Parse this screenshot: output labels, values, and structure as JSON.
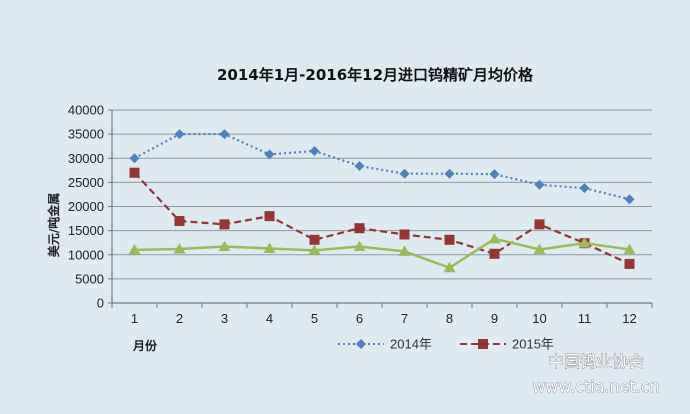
{
  "chart_data": {
    "type": "line",
    "title": "2014年1月-2016年12月进口钨精矿月均价格",
    "xlabel": "月份",
    "ylabel": "美元/吨金属",
    "categories": [
      "1",
      "2",
      "3",
      "4",
      "5",
      "6",
      "7",
      "8",
      "9",
      "10",
      "11",
      "12"
    ],
    "ylim": [
      0,
      40000
    ],
    "yticks": [
      "0",
      "5000",
      "10000",
      "15000",
      "20000",
      "25000",
      "30000",
      "35000",
      "40000"
    ],
    "grid": "horizontal",
    "legend_position": "bottom",
    "series": [
      {
        "name": "2014年",
        "color": "#4f81bd",
        "line_style": "dotted",
        "marker": "diamond",
        "values": [
          30000,
          35000,
          35000,
          30800,
          31500,
          28400,
          26800,
          26800,
          26700,
          24500,
          23800,
          21500
        ]
      },
      {
        "name": "2015年",
        "color": "#943634",
        "line_style": "dashed",
        "marker": "square",
        "values": [
          27000,
          17000,
          16300,
          18000,
          13100,
          15500,
          14200,
          13100,
          10200,
          16300,
          12400,
          8100
        ]
      },
      {
        "name": "",
        "color": "#9bbb59",
        "line_style": "solid",
        "marker": "triangle",
        "values": [
          11000,
          11200,
          11700,
          11300,
          10900,
          11700,
          10700,
          7300,
          13300,
          11100,
          12400,
          11100
        ]
      }
    ]
  },
  "watermark": {
    "line1": "中国钨业协会",
    "line2": "www.ctia.net.cn"
  }
}
